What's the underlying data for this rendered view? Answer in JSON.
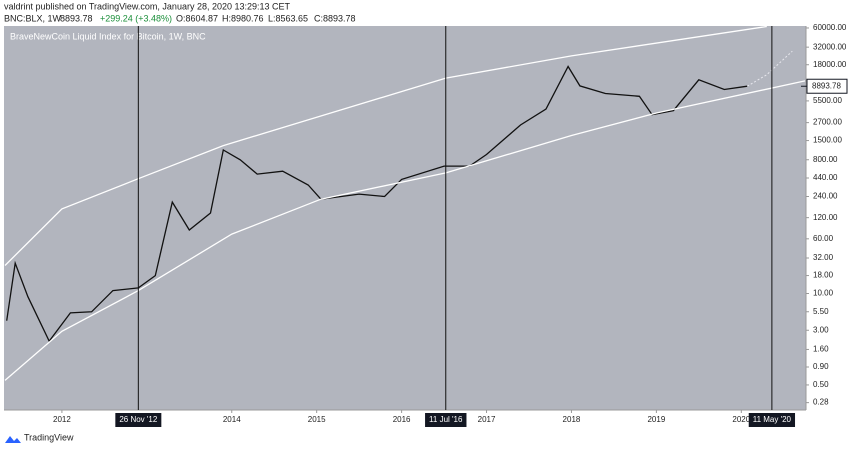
{
  "header": {
    "published": "valdrint published on TradingView.com, January 28, 2020 13:29:13 CET",
    "symbol": "BNC:BLX, 1W",
    "price": "8893.78",
    "change": "+299.24 (+3.48%)",
    "open": "O:8604.87",
    "high": "H:8980.76",
    "low": "L:8563.65",
    "close": "C:8893.78"
  },
  "footer": {
    "brand": "TradingView"
  },
  "chart_data": {
    "type": "line",
    "title": "BraveNewCoin Liquid Index for Bitcoin, 1W, BNC",
    "log_scale": true,
    "xlim": [
      2011.33,
      2020.75
    ],
    "xticks": [
      2012,
      2014,
      2015,
      2016,
      2017,
      2018,
      2019,
      2020
    ],
    "ylim": [
      0.22,
      64000
    ],
    "yticks": [
      0.28,
      {
        "value": 0.5,
        "label": "0.50"
      },
      {
        "value": 0.9,
        "label": "0.90"
      },
      {
        "value": 1.6,
        "label": "1.60"
      },
      {
        "value": 3,
        "label": "3.00"
      },
      {
        "value": 5.5,
        "label": "5.50"
      },
      {
        "value": 10,
        "label": "10.00"
      },
      {
        "value": 18,
        "label": "18.00"
      },
      {
        "value": 32,
        "label": "32.00"
      },
      {
        "value": 60,
        "label": "60.00"
      },
      {
        "value": 120,
        "label": "120.00"
      },
      {
        "value": 240,
        "label": "240.00"
      },
      {
        "value": 440,
        "label": "440.00"
      },
      {
        "value": 800,
        "label": "800.00"
      },
      {
        "value": 1500,
        "label": "1500.00"
      },
      {
        "value": 2700,
        "label": "2700.00"
      },
      {
        "value": 5500,
        "label": "5500.00"
      },
      {
        "value": 18000,
        "label": "18000.00"
      },
      {
        "value": 32000,
        "label": "32000.00"
      },
      {
        "value": 60000,
        "label": "60000.00"
      }
    ],
    "last_price": 8893.78,
    "vlines": [
      {
        "value": 2012.9,
        "label": "26 Nov '12"
      },
      {
        "value": 2016.52,
        "label": "11 Jul '16"
      },
      {
        "value": 2020.36,
        "label": "11 May '20"
      }
    ],
    "series": [
      {
        "color": "#111111",
        "style": "solid",
        "x": [
          2011.35,
          2011.45,
          2011.6,
          2011.85,
          2012.1,
          2012.35,
          2012.6,
          2012.9,
          2013.1,
          2013.3,
          2013.5,
          2013.75,
          2013.9,
          2014.1,
          2014.3,
          2014.6,
          2014.9,
          2015.05,
          2015.5,
          2015.8,
          2016.0,
          2016.5,
          2016.8,
          2017.0,
          2017.4,
          2017.7,
          2017.96,
          2018.1,
          2018.4,
          2018.8,
          2018.95,
          2019.2,
          2019.5,
          2019.8,
          2020.07
        ],
        "values": [
          4.1,
          27,
          9,
          2.1,
          5.3,
          5.5,
          11,
          12,
          18,
          200,
          80,
          140,
          1100,
          800,
          500,
          550,
          350,
          220,
          260,
          240,
          420,
          650,
          650,
          950,
          2500,
          4200,
          17000,
          9000,
          7000,
          6400,
          3500,
          4000,
          11000,
          8000,
          8900
        ]
      },
      {
        "color": "#e8e8ee",
        "style": "dashed",
        "x": [
          2020.07,
          2020.3,
          2020.6
        ],
        "values": [
          8900,
          13000,
          28000
        ]
      },
      {
        "color": "#ffffff",
        "style": "solid",
        "x": [
          2011.33,
          2012.0,
          2012.9,
          2013.9,
          2016.52,
          2018.0,
          2020.3
        ],
        "values": [
          25,
          160,
          430,
          1270,
          11600,
          24000,
          63000
        ]
      },
      {
        "color": "#ffffff",
        "style": "solid",
        "x": [
          2011.33,
          2012.0,
          2012.9,
          2014.0,
          2015.05,
          2016.52,
          2018.0,
          2019.0,
          2020.75
        ],
        "values": [
          0.58,
          2.9,
          11,
          70,
          220,
          520,
          1770,
          3700,
          10600
        ]
      }
    ]
  }
}
